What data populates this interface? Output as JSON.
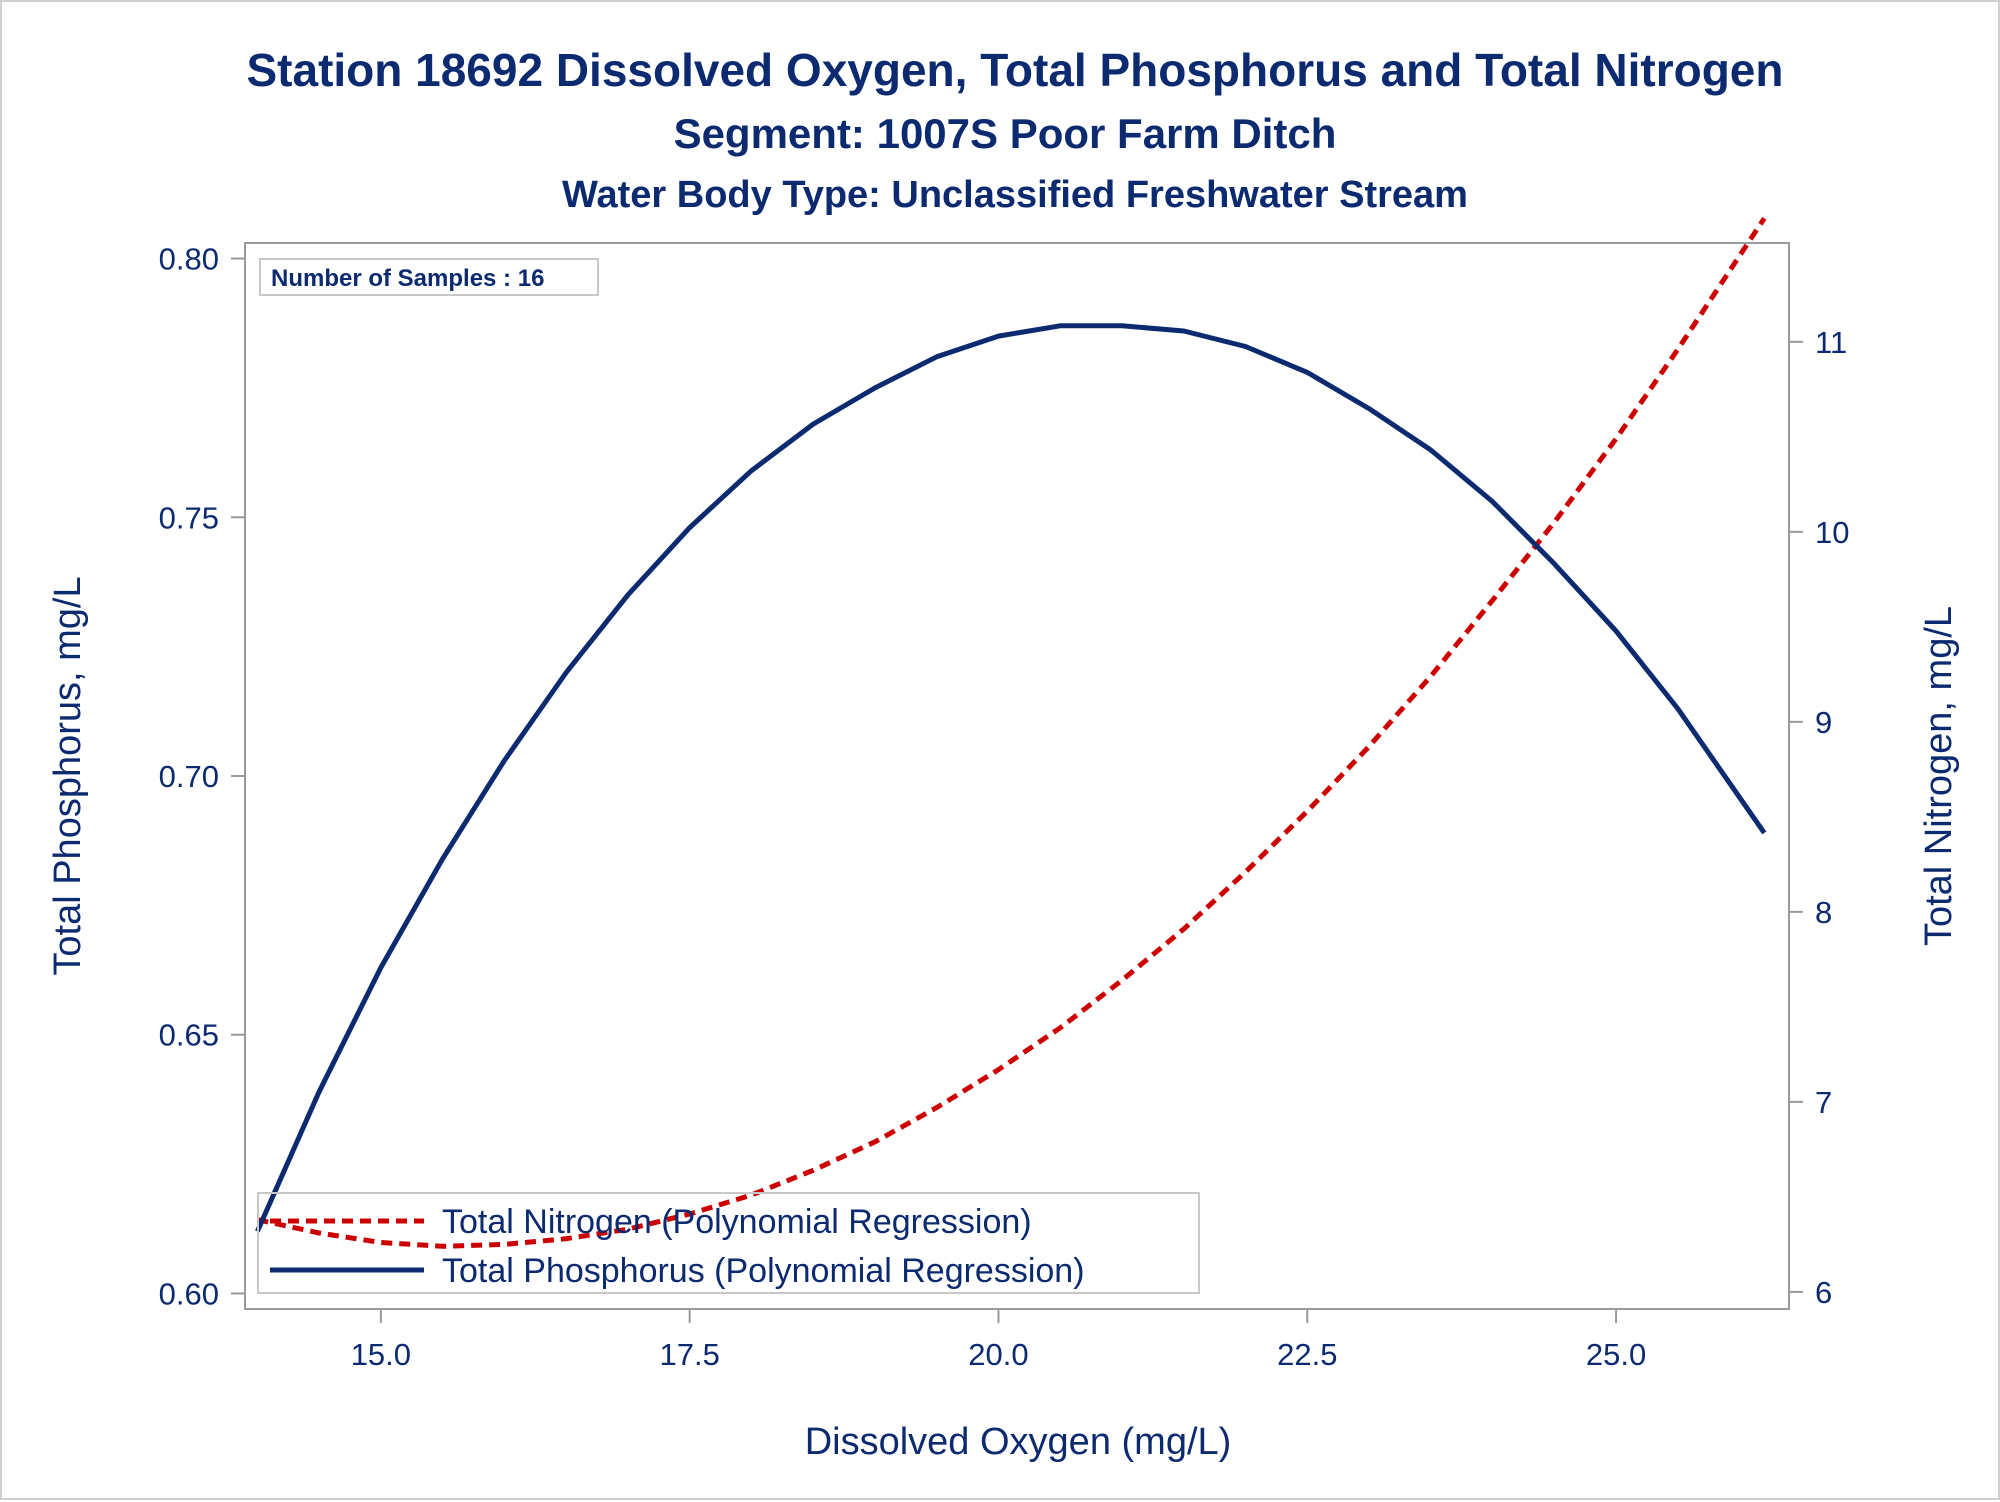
{
  "chart_data": {
    "type": "line",
    "title": "Station 18692  Dissolved Oxygen, Total Phosphorus and Total Nitrogen",
    "subtitle": "Segment: 1007S  Poor Farm Ditch",
    "subtitle2": "Water Body Type: Unclassified Freshwater Stream",
    "xlabel": "Dissolved Oxygen (mg/L)",
    "ylabel": "Total Phosphorus, mg/L",
    "y2label": "Total Nitrogen, mg/L",
    "xlim": [
      13.9,
      26.4
    ],
    "ylim": [
      0.597,
      0.803
    ],
    "y2lim": [
      5.91,
      11.52
    ],
    "x_ticks": [
      "15.0",
      "17.5",
      "20.0",
      "22.5",
      "25.0"
    ],
    "y_ticks": [
      "0.60",
      "0.65",
      "0.70",
      "0.75",
      "0.80"
    ],
    "y2_ticks": [
      "6",
      "7",
      "8",
      "9",
      "10",
      "11"
    ],
    "annotation": "Number of Samples : 16",
    "legend_position": "bottom-left",
    "series": [
      {
        "name": "Total Nitrogen (Polynomial Regression)",
        "axis": "right",
        "style": "dashed",
        "color": "#cc0000",
        "x": [
          14.0,
          14.5,
          15.0,
          15.5,
          16.0,
          16.5,
          17.0,
          17.5,
          18.0,
          18.5,
          19.0,
          19.5,
          20.0,
          20.5,
          21.0,
          21.5,
          22.0,
          22.5,
          23.0,
          23.5,
          24.0,
          24.5,
          25.0,
          25.5,
          26.2
        ],
        "y": [
          6.38,
          6.31,
          6.26,
          6.24,
          6.25,
          6.28,
          6.33,
          6.41,
          6.51,
          6.64,
          6.79,
          6.97,
          7.17,
          7.39,
          7.64,
          7.91,
          8.21,
          8.53,
          8.87,
          9.24,
          9.64,
          10.05,
          10.49,
          10.96,
          11.65
        ]
      },
      {
        "name": "Total Phosphorus (Polynomial Regression)",
        "axis": "left",
        "style": "solid",
        "color": "#0b2a6f",
        "x": [
          14.0,
          14.5,
          15.0,
          15.5,
          16.0,
          16.5,
          17.0,
          17.5,
          18.0,
          18.5,
          19.0,
          19.5,
          20.0,
          20.5,
          21.0,
          21.5,
          22.0,
          22.5,
          23.0,
          23.5,
          24.0,
          24.5,
          25.0,
          25.5,
          26.2
        ],
        "y": [
          0.612,
          0.639,
          0.663,
          0.684,
          0.703,
          0.72,
          0.735,
          0.748,
          0.759,
          0.768,
          0.775,
          0.781,
          0.785,
          0.787,
          0.787,
          0.786,
          0.783,
          0.778,
          0.771,
          0.763,
          0.753,
          0.741,
          0.728,
          0.713,
          0.689
        ]
      }
    ]
  }
}
